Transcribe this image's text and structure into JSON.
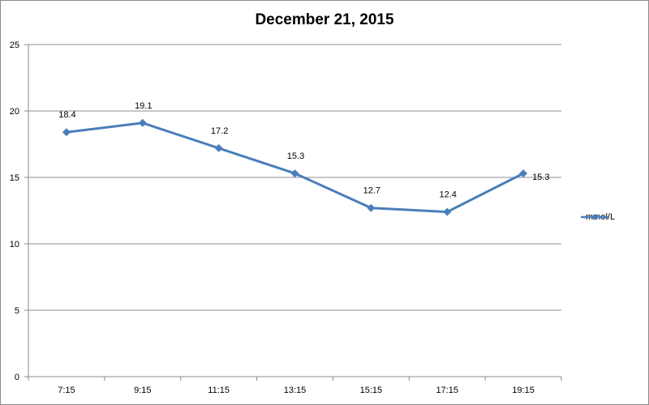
{
  "chart_data": {
    "type": "line",
    "title": "December 21, 2015",
    "categories": [
      "7:15",
      "9:15",
      "11:15",
      "13:15",
      "15:15",
      "17:15",
      "19:15"
    ],
    "series": [
      {
        "name": "mmol/L",
        "values": [
          18.4,
          19.1,
          17.2,
          15.3,
          12.7,
          12.4,
          15.3
        ]
      }
    ],
    "ylim": [
      0,
      25
    ],
    "yticks": [
      0,
      5,
      10,
      15,
      20,
      25
    ],
    "data_labels": [
      "18.4",
      "19.1",
      "17.2",
      "15.3",
      "12.7",
      "12.4",
      "15.3"
    ],
    "grid": true,
    "legend": "right",
    "line_color": "#4a7ebb",
    "grid_color": "#8c8c8c"
  }
}
